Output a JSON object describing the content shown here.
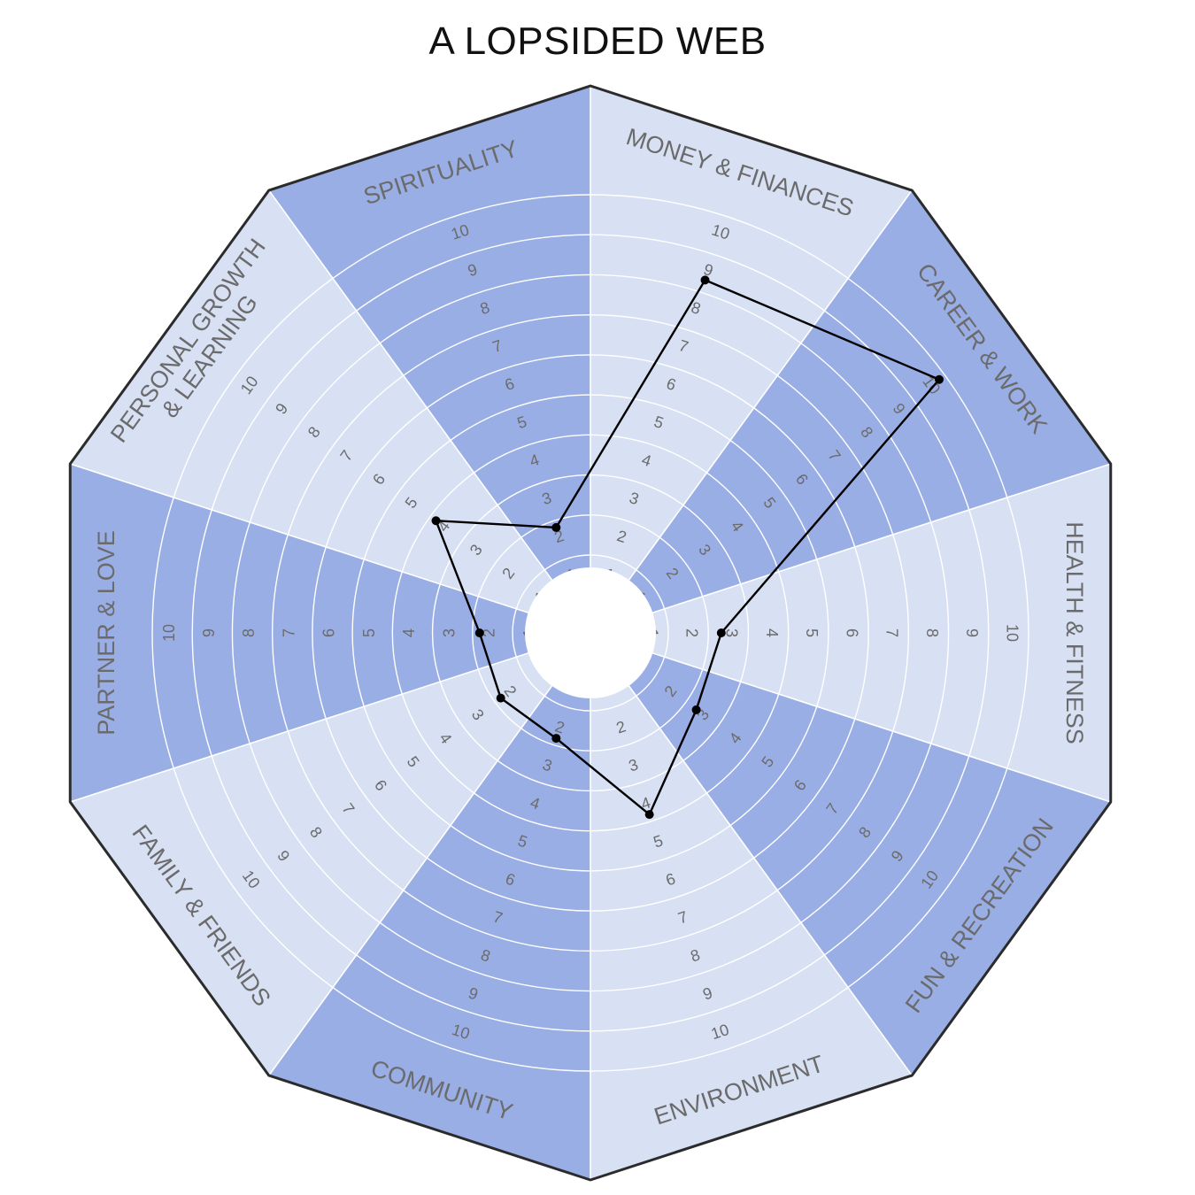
{
  "chart_data": {
    "type": "radar",
    "title": "A LOPSIDED WEB",
    "categories": [
      [
        "MONEY & FINANCES"
      ],
      [
        "CAREER & WORK"
      ],
      [
        "HEALTH & FITNESS"
      ],
      [
        "FUN & RECREATION"
      ],
      [
        "ENVIRONMENT"
      ],
      [
        "COMMUNITY"
      ],
      [
        "FAMILY & FRIENDS"
      ],
      [
        "PARTNER & LOVE"
      ],
      [
        "PERSONAL GROWTH",
        "& LEARNING"
      ],
      [
        "SPIRITUALITY"
      ]
    ],
    "values": [
      8.5,
      10,
      2.5,
      2.5,
      4,
      2,
      2,
      2,
      4,
      2
    ],
    "scale": {
      "min": 1,
      "max": 10
    },
    "tick_labels": [
      "1",
      "2",
      "3",
      "4",
      "5",
      "6",
      "7",
      "8",
      "9",
      "10"
    ],
    "colors": {
      "dark_sector": "#9aaee6",
      "light_sector": "#d8e0f4",
      "ring_line": "#ffffff",
      "outline": "#2b2b2b",
      "web_line": "#000000",
      "center": "#ffffff"
    }
  }
}
